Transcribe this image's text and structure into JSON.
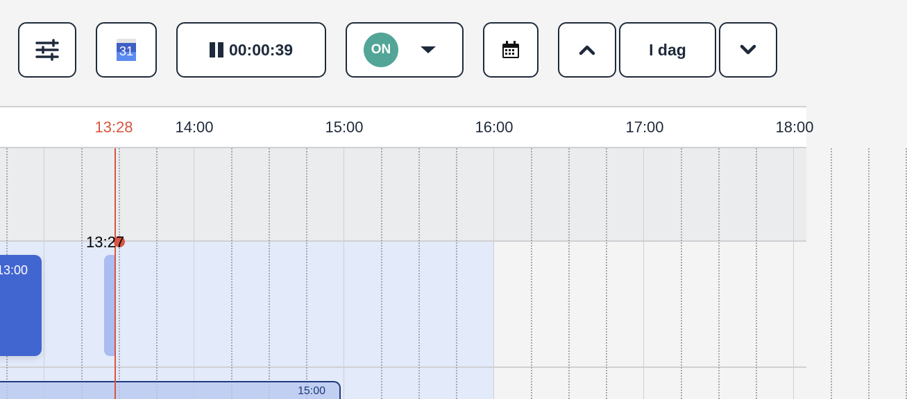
{
  "toolbar": {
    "filter_icon": "sliders-icon",
    "google_calendar_day": "31",
    "timer": {
      "icon": "pause-icon",
      "value": "00:00:39"
    },
    "status": {
      "label": "ON",
      "color": "#52a597",
      "dropdown_icon": "caret-down-icon"
    },
    "calendar_icon": "calendar-icon",
    "prev_icon": "chevron-up-icon",
    "today_label": "I dag",
    "next_icon": "chevron-down-icon"
  },
  "timeline": {
    "current_time": "13:28",
    "current_color": "#d9553f",
    "hours": [
      "14:00",
      "15:00",
      "16:00",
      "17:00",
      "18:00"
    ],
    "marker_label": "13:27",
    "events": [
      {
        "label": "13:00",
        "color": "#4266d0"
      },
      {
        "label": "",
        "color": "#aabcf1"
      },
      {
        "label": "15:00",
        "color": "#c3d2f2"
      }
    ]
  }
}
